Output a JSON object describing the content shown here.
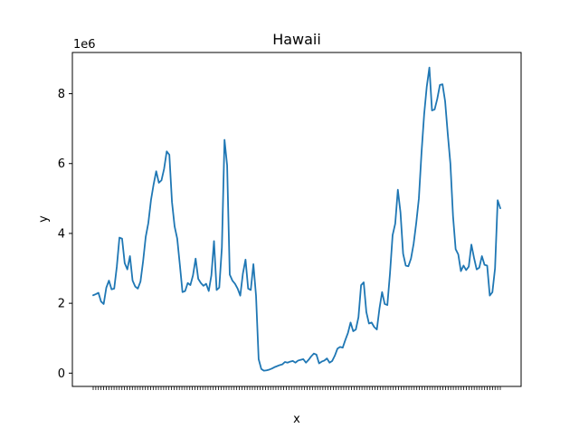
{
  "chart_data": {
    "type": "line",
    "title": "Hawaii",
    "xlabel": "x",
    "ylabel": "y",
    "y_scale_label": "1e6",
    "y_tick_labels": [
      "0",
      "2",
      "4",
      "6",
      "8"
    ],
    "y_tick_values": [
      0,
      2,
      4,
      6,
      8
    ],
    "ylim": [
      -0.38,
      9.18
    ],
    "grid": false,
    "legend": "none",
    "x_tick_count": 157,
    "series": [
      {
        "color": "#1f77b4",
        "values": [
          2.23,
          2.26,
          2.3,
          2.05,
          1.98,
          2.45,
          2.65,
          2.4,
          2.42,
          3.05,
          3.88,
          3.85,
          3.15,
          2.97,
          3.35,
          2.65,
          2.48,
          2.42,
          2.62,
          3.2,
          3.9,
          4.3,
          4.95,
          5.4,
          5.78,
          5.45,
          5.52,
          5.85,
          6.35,
          6.25,
          4.9,
          4.2,
          3.85,
          3.1,
          2.32,
          2.35,
          2.58,
          2.52,
          2.8,
          3.28,
          2.7,
          2.58,
          2.5,
          2.56,
          2.35,
          2.8,
          3.78,
          2.38,
          2.45,
          3.6,
          6.68,
          5.95,
          2.82,
          2.65,
          2.56,
          2.42,
          2.22,
          2.85,
          3.25,
          2.42,
          2.38,
          3.12,
          2.22,
          0.4,
          0.12,
          0.07,
          0.08,
          0.1,
          0.13,
          0.17,
          0.2,
          0.23,
          0.25,
          0.32,
          0.3,
          0.33,
          0.35,
          0.3,
          0.36,
          0.38,
          0.4,
          0.3,
          0.38,
          0.48,
          0.56,
          0.53,
          0.28,
          0.33,
          0.36,
          0.42,
          0.3,
          0.35,
          0.5,
          0.7,
          0.75,
          0.73,
          0.95,
          1.15,
          1.45,
          1.2,
          1.25,
          1.6,
          2.52,
          2.6,
          1.75,
          1.42,
          1.45,
          1.32,
          1.25,
          1.85,
          2.32,
          1.98,
          1.95,
          2.85,
          3.95,
          4.28,
          5.25,
          4.6,
          3.42,
          3.08,
          3.06,
          3.28,
          3.7,
          4.3,
          5.0,
          6.3,
          7.4,
          8.2,
          8.75,
          7.52,
          7.55,
          7.85,
          8.25,
          8.27,
          7.78,
          6.85,
          6.0,
          4.5,
          3.55,
          3.4,
          2.92,
          3.08,
          2.95,
          3.05,
          3.68,
          3.3,
          2.97,
          3.02,
          3.35,
          3.1,
          3.08,
          2.22,
          2.32,
          3.0,
          4.95,
          4.72
        ]
      }
    ]
  }
}
